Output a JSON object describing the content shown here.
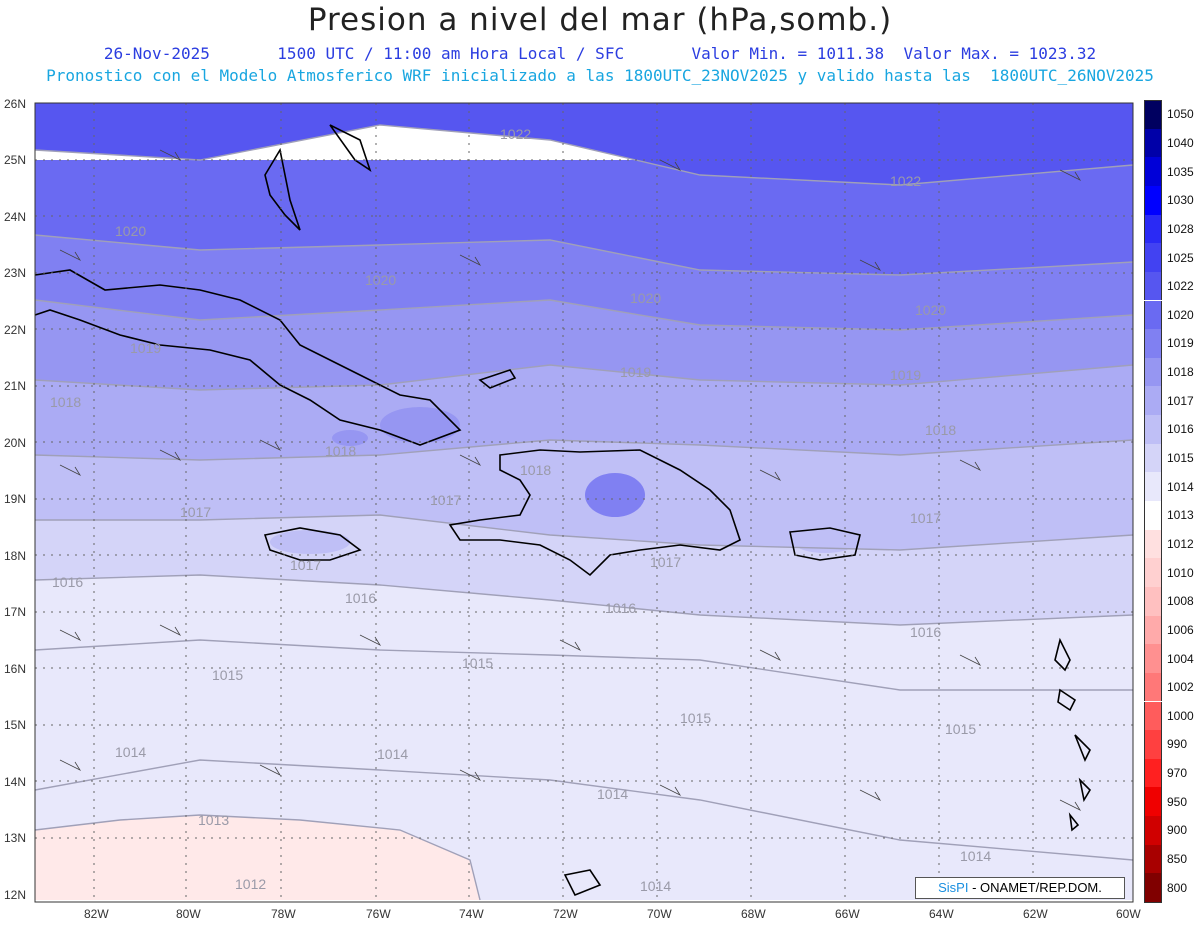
{
  "header": {
    "title": "Presion a nivel del mar (hPa,somb.)",
    "date": "26-Nov-2025",
    "time": "1500 UTC / 11:00 am Hora Local / SFC",
    "min_max": "Valor Min. = 1011.38  Valor Max. = 1023.32",
    "forecast": "Pronostico con el Modelo Atmosferico WRF inicializado a las 1800UTC_23NOV2025 y valido hasta las  1800UTC_26NOV2025"
  },
  "axes": {
    "lat_labels": [
      "26N",
      "25N",
      "24N",
      "23N",
      "22N",
      "21N",
      "20N",
      "19N",
      "18N",
      "17N",
      "16N",
      "15N",
      "14N",
      "13N",
      "12N"
    ],
    "lon_labels": [
      "82W",
      "80W",
      "78W",
      "76W",
      "74W",
      "72W",
      "70W",
      "68W",
      "66W",
      "64W",
      "62W",
      "60W"
    ]
  },
  "contour_labels": [
    "1022",
    "1022",
    "1020",
    "1020",
    "1020",
    "1020",
    "1019",
    "1019",
    "1019",
    "1018",
    "1018",
    "1018",
    "1018",
    "1017",
    "1017",
    "1017",
    "1017",
    "1017",
    "1016",
    "1016",
    "1016",
    "1016",
    "1015",
    "1015",
    "1015",
    "1015",
    "1014",
    "1014",
    "1014",
    "1014",
    "1014",
    "1013",
    "1012",
    "1016",
    "1016",
    "1016"
  ],
  "colorbar": {
    "levels": [
      "1050",
      "1040",
      "1035",
      "1030",
      "1028",
      "1025",
      "1022",
      "1020",
      "1019",
      "1018",
      "1017",
      "1016",
      "1015",
      "1014",
      "1013",
      "1012",
      "1010",
      "1008",
      "1006",
      "1004",
      "1002",
      "1000",
      "990",
      "970",
      "950",
      "900",
      "850",
      "800"
    ],
    "colors": [
      "#000060",
      "#0000a8",
      "#0000d8",
      "#0000ff",
      "#2a2af5",
      "#4242f2",
      "#5656f0",
      "#6a6af2",
      "#8080f2",
      "#9696f2",
      "#ababf4",
      "#bfbff6",
      "#d4d4f8",
      "#e8e8fb",
      "#ffffff",
      "#ffe0e0",
      "#ffd0d0",
      "#ffc0c0",
      "#ffaaaa",
      "#ff9090",
      "#ff7878",
      "#ff5c5c",
      "#ff4040",
      "#ff2020",
      "#f00000",
      "#d00000",
      "#a80000",
      "#800000"
    ]
  },
  "credit": {
    "logo": "SisPI",
    "text": "- ONAMET/REP.DOM."
  }
}
